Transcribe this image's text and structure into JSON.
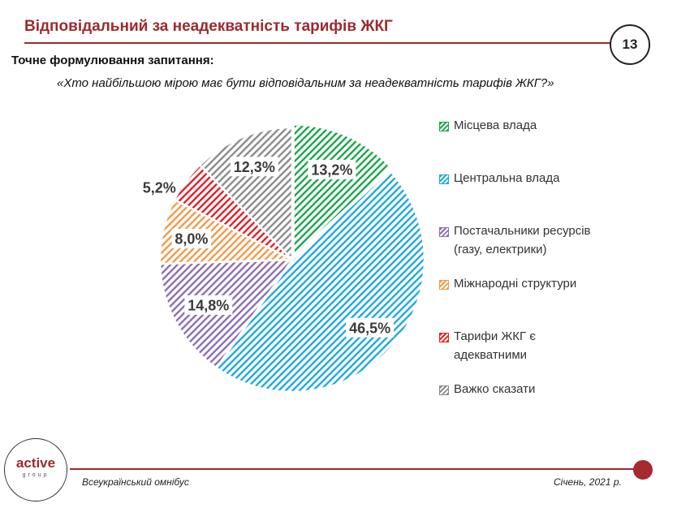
{
  "header": {
    "title": "Відповідальний за неадекватність тарифів ЖКГ",
    "page_number": "13"
  },
  "question": {
    "label": "Точне формулювання запитання:",
    "text": "«Хто найбільшою мірою має бути відповідальним за неадекватність тарифів ЖКГ?»"
  },
  "chart_data": {
    "type": "pie",
    "title": "",
    "slices": [
      {
        "label": "Місцева влада",
        "value": 13.2,
        "display": "13,2%",
        "color": "#1aa64b"
      },
      {
        "label": "Центральна влада",
        "value": 46.5,
        "display": "46,5%",
        "color": "#1fa9dc"
      },
      {
        "label": "Постачальники ресурсів (газу, електрики)",
        "value": 14.8,
        "display": "14,8%",
        "color": "#8c6fb0"
      },
      {
        "label": "Міжнародні структури",
        "value": 8.0,
        "display": "8,0%",
        "color": "#f29a4a"
      },
      {
        "label": "Тарифи ЖКГ є адекватними",
        "value": 5.2,
        "display": "5,2%",
        "color": "#e02026"
      },
      {
        "label": "Важко сказати",
        "value": 12.3,
        "display": "12,3%",
        "color": "#8c8c8c"
      }
    ],
    "legend_lines": [
      [
        "Місцева влада"
      ],
      [
        "Центральна влада"
      ],
      [
        "Постачальники ресурсів",
        "(газу, електрики)"
      ],
      [
        "Міжнародні структури"
      ],
      [
        "Тарифи ЖКГ є",
        "адекватними"
      ],
      [
        "Важко сказати"
      ]
    ],
    "legend_placement": "right",
    "pattern": "diagonal-hatch"
  },
  "footer": {
    "logo_word": "active",
    "logo_sub": "group",
    "left_text": "Всеукраїнський омнібус",
    "right_text": "Січень, 2021 р."
  }
}
